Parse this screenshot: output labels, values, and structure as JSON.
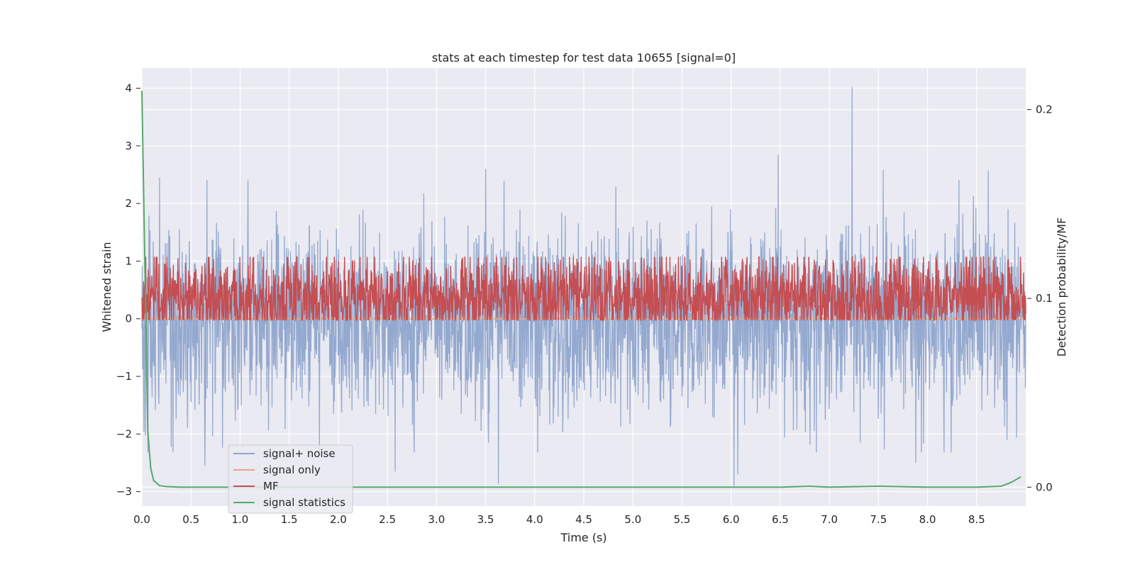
{
  "chart_data": {
    "type": "line",
    "title": "stats at each timestep for test data 10655 [signal=0]",
    "xlabel": "Time (s)",
    "ylabel": "Whitened strain",
    "y2label": "Detection probability/MF",
    "xlim": [
      0.0,
      9.0
    ],
    "ylim": [
      -3.25,
      4.35
    ],
    "y2lim": [
      -0.01,
      0.222
    ],
    "xticks": [
      0.0,
      0.5,
      1.0,
      1.5,
      2.0,
      2.5,
      3.0,
      3.5,
      4.0,
      4.5,
      5.0,
      5.5,
      6.0,
      6.5,
      7.0,
      7.5,
      8.0,
      8.5
    ],
    "xtick_labels": [
      "0.0",
      "0.5",
      "1.0",
      "1.5",
      "2.0",
      "2.5",
      "3.0",
      "3.5",
      "4.0",
      "4.5",
      "5.0",
      "5.5",
      "6.0",
      "6.5",
      "7.0",
      "7.5",
      "8.0",
      "8.5"
    ],
    "yticks": [
      -3,
      -2,
      -1,
      0,
      1,
      2,
      3,
      4
    ],
    "ytick_labels": [
      "−3",
      "−2",
      "−1",
      "0",
      "1",
      "2",
      "3",
      "4"
    ],
    "y2ticks": [
      0.0,
      0.1,
      0.2
    ],
    "y2tick_labels": [
      "0.0",
      "0.1",
      "0.2"
    ],
    "grid": true,
    "legend_position": "lower-left",
    "series": [
      {
        "name": "signal+ noise",
        "color": "#8fa5cc",
        "axis": "left",
        "noise_model": {
          "n_points": 2500,
          "mean": 0.0,
          "std_positive": 0.75,
          "std_negative": 0.85,
          "min": -2.9,
          "max": 4.02
        },
        "spikes": [
          {
            "x": 7.23,
            "y": 4.02
          },
          {
            "x": 6.48,
            "y": 2.84
          },
          {
            "x": 3.5,
            "y": 2.6
          },
          {
            "x": 8.62,
            "y": 2.57
          },
          {
            "x": 7.55,
            "y": 2.58
          },
          {
            "x": 0.18,
            "y": 2.45
          },
          {
            "x": 1.08,
            "y": 2.4
          },
          {
            "x": 3.63,
            "y": -2.86
          },
          {
            "x": 6.03,
            "y": -2.9
          },
          {
            "x": 6.07,
            "y": -2.7
          },
          {
            "x": 2.58,
            "y": -2.65
          },
          {
            "x": 7.88,
            "y": -2.5
          },
          {
            "x": 0.64,
            "y": -2.55
          }
        ]
      },
      {
        "name": "signal only",
        "color": "#e8a382",
        "axis": "left",
        "constant": 0.0
      },
      {
        "name": "MF",
        "color": "#c44e52",
        "axis": "right",
        "noise_model": {
          "n_points": 2500,
          "mean": 0.1,
          "std": 0.012,
          "min": 0.0885,
          "max": 0.122
        },
        "spikes": [
          {
            "x": 7.18,
            "y": 0.12
          },
          {
            "x": 7.62,
            "y": 0.121
          },
          {
            "x": 4.86,
            "y": 0.117
          },
          {
            "x": 0.95,
            "y": 0.115
          }
        ]
      },
      {
        "name": "signal statistics",
        "color": "#55a868",
        "axis": "right",
        "x": [
          0.0,
          0.03,
          0.06,
          0.09,
          0.12,
          0.18,
          0.25,
          0.4,
          1.0,
          2.0,
          3.0,
          4.0,
          5.0,
          6.0,
          6.5,
          6.8,
          7.0,
          7.5,
          8.0,
          8.5,
          8.75,
          8.85,
          8.95
        ],
        "values": [
          0.21,
          0.12,
          0.03,
          0.01,
          0.0035,
          0.0008,
          0.0003,
          0.0,
          0.0,
          0.0,
          0.0,
          0.0,
          0.0,
          0.0,
          0.0,
          0.0005,
          0.0,
          0.0005,
          0.0,
          0.0,
          0.0005,
          0.0025,
          0.0055
        ]
      }
    ]
  }
}
